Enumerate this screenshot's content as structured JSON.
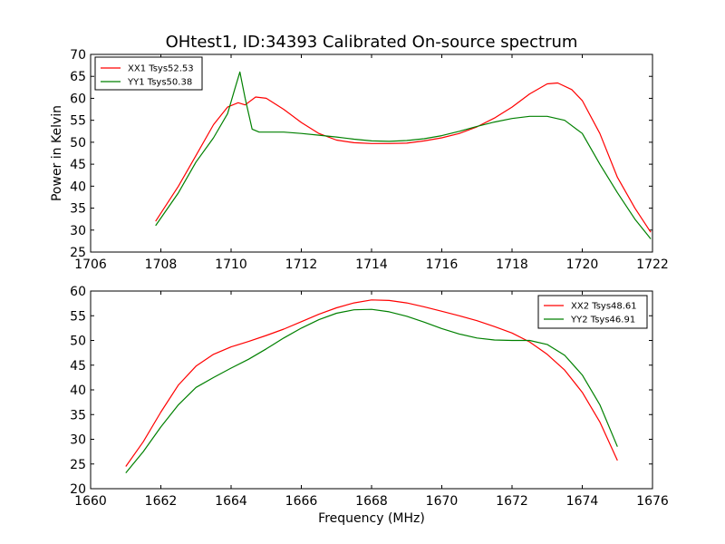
{
  "chart_data": [
    {
      "type": "line",
      "title": "OHtest1, ID:34393 Calibrated On-source spectrum",
      "xlabel": "",
      "ylabel": "Power in Kelvin",
      "xlim": [
        1706,
        1722
      ],
      "ylim": [
        25,
        70
      ],
      "x_ticks": [
        "1706",
        "1708",
        "1710",
        "1712",
        "1714",
        "1716",
        "1718",
        "1720",
        "1722"
      ],
      "y_ticks": [
        "25",
        "30",
        "35",
        "40",
        "45",
        "50",
        "55",
        "60",
        "65",
        "70"
      ],
      "grid": false,
      "legend_position": "top-left",
      "series": [
        {
          "name": "XX1 Tsys52.53",
          "color": "#ff0000",
          "points": [
            [
              1707.85,
              32.0
            ],
            [
              1708.5,
              40.0
            ],
            [
              1709.0,
              47.0
            ],
            [
              1709.5,
              54.0
            ],
            [
              1709.9,
              58.0
            ],
            [
              1710.2,
              59.0
            ],
            [
              1710.4,
              58.5
            ],
            [
              1710.7,
              60.3
            ],
            [
              1711.0,
              60.0
            ],
            [
              1711.5,
              57.5
            ],
            [
              1712.0,
              54.5
            ],
            [
              1712.5,
              52.0
            ],
            [
              1713.0,
              50.5
            ],
            [
              1713.5,
              49.9
            ],
            [
              1714.0,
              49.7
            ],
            [
              1714.5,
              49.7
            ],
            [
              1715.0,
              49.8
            ],
            [
              1715.5,
              50.3
            ],
            [
              1716.0,
              51.0
            ],
            [
              1716.5,
              52.0
            ],
            [
              1717.0,
              53.5
            ],
            [
              1717.5,
              55.5
            ],
            [
              1718.0,
              58.0
            ],
            [
              1718.5,
              61.0
            ],
            [
              1719.0,
              63.3
            ],
            [
              1719.3,
              63.5
            ],
            [
              1719.7,
              62.0
            ],
            [
              1720.0,
              59.5
            ],
            [
              1720.5,
              52.0
            ],
            [
              1721.0,
              42.0
            ],
            [
              1721.5,
              35.0
            ],
            [
              1721.95,
              29.5
            ]
          ]
        },
        {
          "name": "YY1 Tsys50.38",
          "color": "#008000",
          "points": [
            [
              1707.85,
              31.0
            ],
            [
              1708.5,
              38.5
            ],
            [
              1709.0,
              45.5
            ],
            [
              1709.5,
              51.0
            ],
            [
              1709.9,
              56.5
            ],
            [
              1710.1,
              62.0
            ],
            [
              1710.25,
              66.0
            ],
            [
              1710.4,
              60.0
            ],
            [
              1710.6,
              53.0
            ],
            [
              1710.8,
              52.3
            ],
            [
              1711.5,
              52.3
            ],
            [
              1712.0,
              52.0
            ],
            [
              1712.5,
              51.6
            ],
            [
              1713.0,
              51.2
            ],
            [
              1713.5,
              50.7
            ],
            [
              1714.0,
              50.3
            ],
            [
              1714.5,
              50.2
            ],
            [
              1715.0,
              50.4
            ],
            [
              1715.5,
              50.8
            ],
            [
              1716.0,
              51.5
            ],
            [
              1716.5,
              52.5
            ],
            [
              1717.0,
              53.6
            ],
            [
              1717.5,
              54.6
            ],
            [
              1718.0,
              55.4
            ],
            [
              1718.5,
              55.9
            ],
            [
              1719.0,
              55.9
            ],
            [
              1719.5,
              55.0
            ],
            [
              1720.0,
              52.0
            ],
            [
              1720.5,
              45.0
            ],
            [
              1721.0,
              38.5
            ],
            [
              1721.5,
              32.5
            ],
            [
              1721.95,
              28.0
            ]
          ]
        }
      ]
    },
    {
      "type": "line",
      "title": "",
      "xlabel": "Frequency (MHz)",
      "ylabel": "",
      "xlim": [
        1660,
        1676
      ],
      "ylim": [
        20,
        60
      ],
      "x_ticks": [
        "1660",
        "1662",
        "1664",
        "1666",
        "1668",
        "1670",
        "1672",
        "1674",
        "1676"
      ],
      "y_ticks": [
        "20",
        "25",
        "30",
        "35",
        "40",
        "45",
        "50",
        "55",
        "60"
      ],
      "grid": false,
      "legend_position": "top-right",
      "series": [
        {
          "name": "XX2 Tsys48.61",
          "color": "#ff0000",
          "points": [
            [
              1661.0,
              24.5
            ],
            [
              1661.5,
              29.5
            ],
            [
              1662.0,
              35.5
            ],
            [
              1662.5,
              41.0
            ],
            [
              1663.0,
              44.8
            ],
            [
              1663.5,
              47.2
            ],
            [
              1664.0,
              48.7
            ],
            [
              1664.5,
              49.8
            ],
            [
              1665.0,
              51.0
            ],
            [
              1665.5,
              52.3
            ],
            [
              1666.0,
              53.8
            ],
            [
              1666.5,
              55.3
            ],
            [
              1667.0,
              56.6
            ],
            [
              1667.5,
              57.6
            ],
            [
              1668.0,
              58.2
            ],
            [
              1668.5,
              58.1
            ],
            [
              1669.0,
              57.6
            ],
            [
              1669.5,
              56.8
            ],
            [
              1670.0,
              55.9
            ],
            [
              1670.5,
              55.0
            ],
            [
              1671.0,
              54.0
            ],
            [
              1671.5,
              52.8
            ],
            [
              1672.0,
              51.5
            ],
            [
              1672.5,
              49.7
            ],
            [
              1673.0,
              47.2
            ],
            [
              1673.5,
              44.0
            ],
            [
              1674.0,
              39.5
            ],
            [
              1674.5,
              33.5
            ],
            [
              1675.0,
              25.7
            ]
          ]
        },
        {
          "name": "YY2 Tsys46.91",
          "color": "#008000",
          "points": [
            [
              1661.0,
              23.2
            ],
            [
              1661.5,
              27.5
            ],
            [
              1662.0,
              32.5
            ],
            [
              1662.5,
              37.0
            ],
            [
              1663.0,
              40.5
            ],
            [
              1663.5,
              42.5
            ],
            [
              1664.0,
              44.4
            ],
            [
              1664.5,
              46.2
            ],
            [
              1665.0,
              48.3
            ],
            [
              1665.5,
              50.5
            ],
            [
              1666.0,
              52.5
            ],
            [
              1666.5,
              54.2
            ],
            [
              1667.0,
              55.5
            ],
            [
              1667.5,
              56.2
            ],
            [
              1668.0,
              56.3
            ],
            [
              1668.5,
              55.8
            ],
            [
              1669.0,
              54.9
            ],
            [
              1669.5,
              53.7
            ],
            [
              1670.0,
              52.4
            ],
            [
              1670.5,
              51.3
            ],
            [
              1671.0,
              50.5
            ],
            [
              1671.5,
              50.1
            ],
            [
              1672.0,
              50.0
            ],
            [
              1672.5,
              50.0
            ],
            [
              1673.0,
              49.2
            ],
            [
              1673.5,
              47.0
            ],
            [
              1674.0,
              43.0
            ],
            [
              1674.5,
              37.0
            ],
            [
              1675.0,
              28.5
            ]
          ]
        }
      ]
    }
  ]
}
